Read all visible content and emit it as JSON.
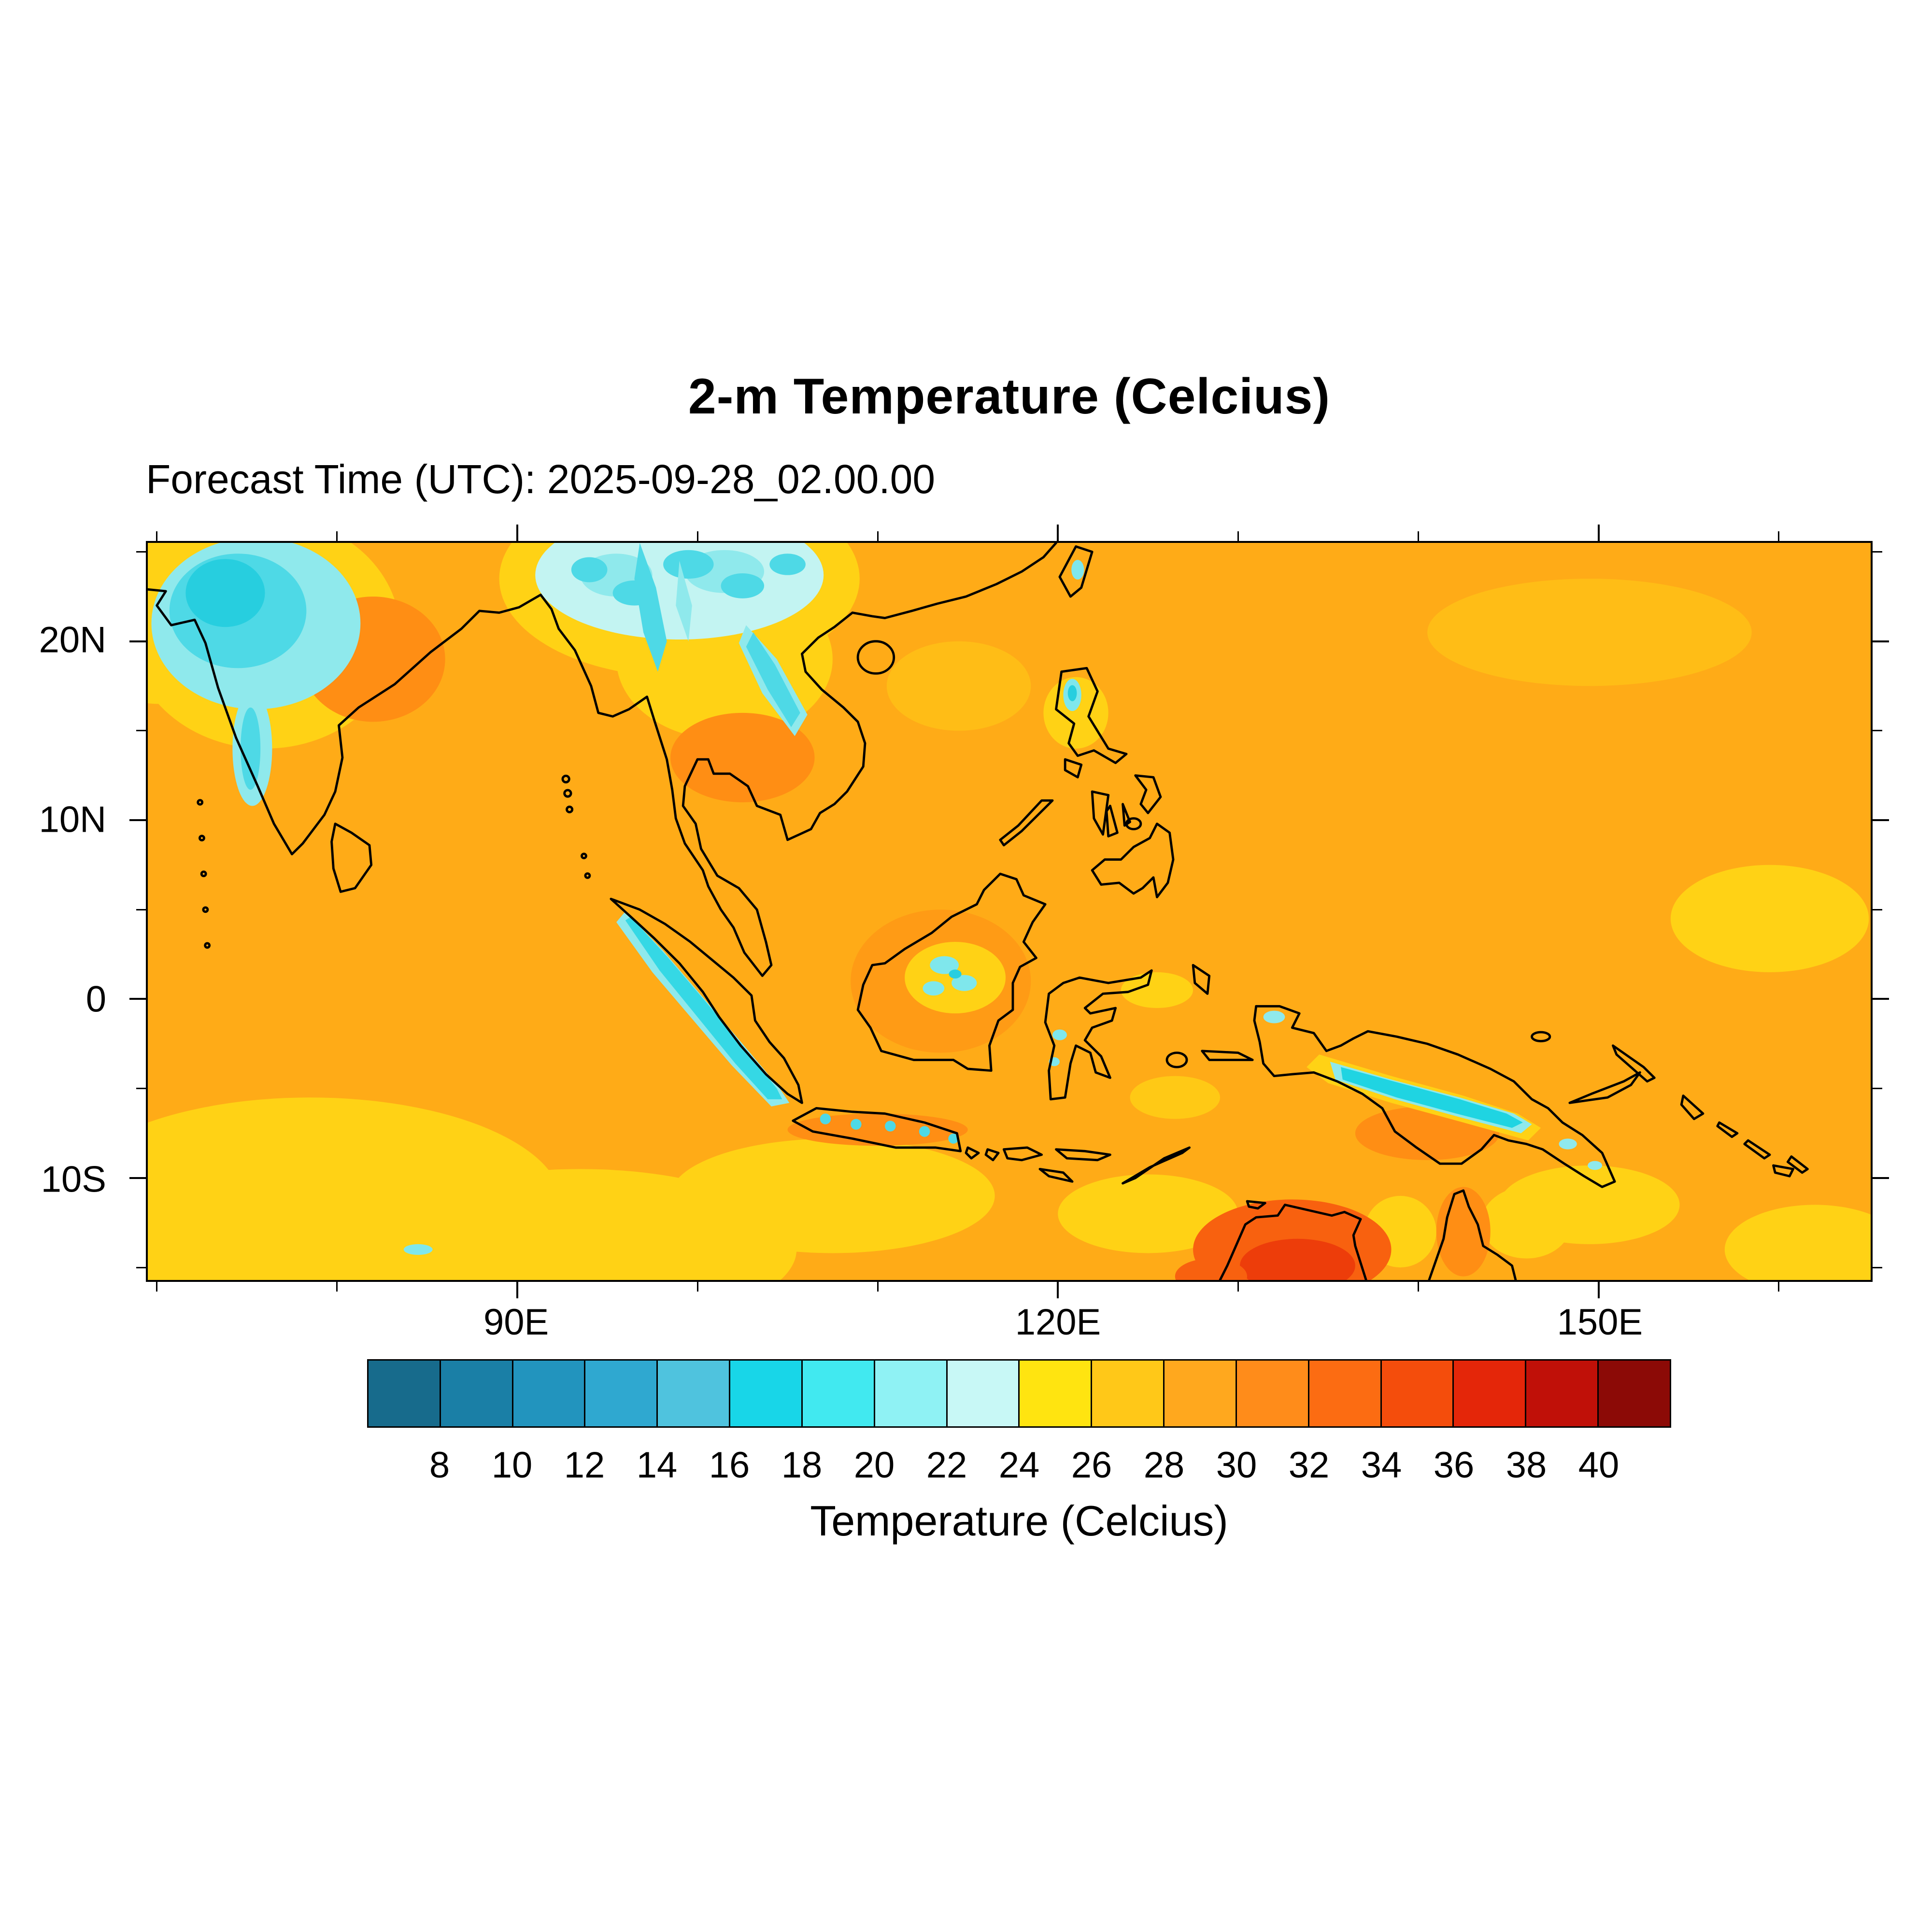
{
  "title": "2-m Temperature (Celcius)",
  "forecast_time_line": "Forecast Time (UTC): 2025-09-28_02.00.00",
  "chart_data": {
    "type": "heatmap",
    "title": "2-m Temperature (Celcius)",
    "subtitle": "Forecast Time (UTC): 2025-09-28_02.00.00",
    "forecast_time_utc": "2025-09-28_02.00.00",
    "grid": false,
    "x_axis": {
      "label": "",
      "range": [
        69.5,
        165.1
      ],
      "ticks": [
        {
          "label": "90E",
          "value": 90
        },
        {
          "label": "120E",
          "value": 120
        },
        {
          "label": "150E",
          "value": 150
        }
      ],
      "minor_ticks": [
        70,
        80,
        100,
        110,
        130,
        140,
        160
      ]
    },
    "y_axis": {
      "label": "",
      "range": [
        -15.7,
        25.5
      ],
      "ticks": [
        {
          "label": "20N",
          "value": 20
        },
        {
          "label": "10N",
          "value": 10
        },
        {
          "label": "0",
          "value": 0
        },
        {
          "label": "10S",
          "value": -10
        }
      ],
      "minor_ticks": [
        25,
        15,
        5,
        -5,
        -15
      ]
    },
    "colorbar": {
      "title": "Temperature (Celcius)",
      "units": "Celcius",
      "orientation": "horizontal",
      "levels": [
        8,
        10,
        12,
        14,
        16,
        18,
        20,
        22,
        24,
        26,
        28,
        30,
        32,
        34,
        36,
        38,
        40
      ],
      "tick_labels": [
        "8",
        "10",
        "12",
        "14",
        "16",
        "18",
        "20",
        "22",
        "24",
        "26",
        "28",
        "30",
        "32",
        "34",
        "36",
        "38",
        "40"
      ],
      "colors": [
        "#176B8C",
        "#1A7FA6",
        "#2294BE",
        "#2FA8D0",
        "#4FC3DE",
        "#18D6E8",
        "#41E9F0",
        "#8FF2F4",
        "#C8F8F6",
        "#FFE410",
        "#FFC818",
        "#FFA81E",
        "#FF8C1A",
        "#FC6C12",
        "#F44D0C",
        "#E42609",
        "#C01008",
        "#8C0A06"
      ]
    },
    "map_colors": {
      "dominant_ocean": "#FFAB17",
      "coastline": "#000000",
      "cool_highlands": "#4ED9E6",
      "warm_interior_australia": "#ED3D0A"
    },
    "field_summary": [
      {
        "region": "Indian subcontinent interior",
        "approx_temp_c": "14-22",
        "appearance": "cyan patch"
      },
      {
        "region": "Yunnan / eastern Himalaya highlands (top centre)",
        "approx_temp_c": "16-24",
        "appearance": "pale cyan patch"
      },
      {
        "region": "Annamite Range (Laos/Vietnam)",
        "approx_temp_c": "18-24",
        "appearance": "cyan streak"
      },
      {
        "region": "Barisan Mountains along Sumatra",
        "approx_temp_c": "16-22",
        "appearance": "thin cyan ridge"
      },
      {
        "region": "New Guinea central highlands",
        "approx_temp_c": "14-20",
        "appearance": "bright cyan ridge"
      },
      {
        "region": "Open tropical ocean (most of domain)",
        "approx_temp_c": "28-30",
        "appearance": "orange"
      },
      {
        "region": "Southern Indian Ocean / south of Java",
        "approx_temp_c": "24-28",
        "appearance": "yellow"
      },
      {
        "region": "Northern Australia interior",
        "approx_temp_c": "32-38",
        "appearance": "red-orange"
      }
    ]
  }
}
